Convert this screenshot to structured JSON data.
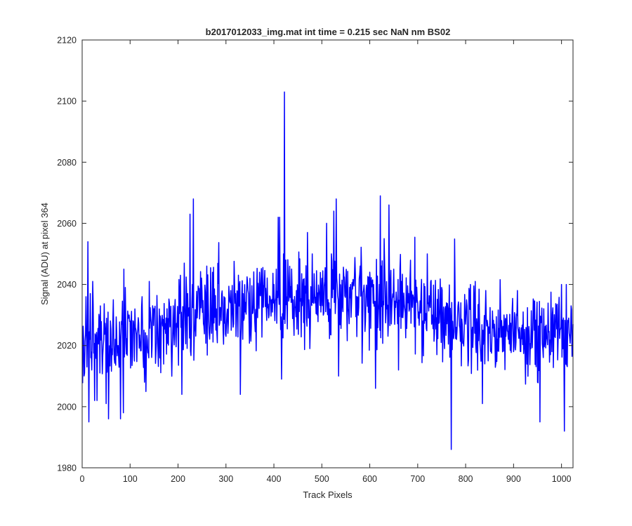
{
  "chart_data": {
    "type": "line",
    "title": "b2017012033_img.mat int time = 0.215 sec  NaN nm BS02",
    "xlabel": "Track Pixels",
    "ylabel": "Signal (ADU) at pixel 364",
    "xlim": [
      0,
      1024
    ],
    "ylim": [
      1980,
      2120
    ],
    "xticks": [
      0,
      100,
      200,
      300,
      400,
      500,
      600,
      700,
      800,
      900,
      1000
    ],
    "yticks": [
      1980,
      2000,
      2020,
      2040,
      2060,
      2080,
      2100,
      2120
    ],
    "grid": false,
    "line_color": "#0000ff",
    "series": [
      {
        "trend": [
          [
            0,
            2020
          ],
          [
            100,
            2022
          ],
          [
            200,
            2028
          ],
          [
            300,
            2031
          ],
          [
            400,
            2033
          ],
          [
            500,
            2035
          ],
          [
            600,
            2036
          ],
          [
            700,
            2033
          ],
          [
            800,
            2027
          ],
          [
            900,
            2024
          ],
          [
            1024,
            2024
          ]
        ],
        "noise_sd": 7,
        "peaks": [
          [
            3,
            2022
          ],
          [
            5,
            2011
          ],
          [
            8,
            2036
          ],
          [
            10,
            2013
          ],
          [
            12,
            2054
          ],
          [
            14,
            1995
          ],
          [
            17,
            2037
          ],
          [
            20,
            2012
          ],
          [
            22,
            2041
          ],
          [
            26,
            2002
          ],
          [
            31,
            2002
          ],
          [
            38,
            2033
          ],
          [
            45,
            2022
          ],
          [
            50,
            2001
          ],
          [
            55,
            1996
          ],
          [
            65,
            2035
          ],
          [
            75,
            2020
          ],
          [
            80,
            1996
          ],
          [
            86,
            1998
          ],
          [
            87,
            2045
          ],
          [
            90,
            2039
          ],
          [
            100,
            2028
          ],
          [
            115,
            2024
          ],
          [
            125,
            2036
          ],
          [
            130,
            2008
          ],
          [
            140,
            2041
          ],
          [
            150,
            2032
          ],
          [
            160,
            2024
          ],
          [
            175,
            2029
          ],
          [
            190,
            2033
          ],
          [
            205,
            2043
          ],
          [
            208,
            2004
          ],
          [
            213,
            2047
          ],
          [
            220,
            2037
          ],
          [
            225,
            2063
          ],
          [
            230,
            2040
          ],
          [
            232,
            2068
          ],
          [
            240,
            2029
          ],
          [
            250,
            2038
          ],
          [
            260,
            2046
          ],
          [
            270,
            2024
          ],
          [
            280,
            2032
          ],
          [
            289,
            2032
          ],
          [
            300,
            2023
          ],
          [
            310,
            2038
          ],
          [
            320,
            2037
          ],
          [
            330,
            2004
          ],
          [
            340,
            2031
          ],
          [
            350,
            2042
          ],
          [
            360,
            2028
          ],
          [
            370,
            2044
          ],
          [
            380,
            2040
          ],
          [
            390,
            2030
          ],
          [
            400,
            2040
          ],
          [
            405,
            2045
          ],
          [
            409,
            2062
          ],
          [
            412,
            2062
          ],
          [
            416,
            2009
          ],
          [
            420,
            2050
          ],
          [
            422,
            2103
          ],
          [
            425,
            2048
          ],
          [
            430,
            2042
          ],
          [
            440,
            2035
          ],
          [
            450,
            2035
          ],
          [
            460,
            2038
          ],
          [
            470,
            2057
          ],
          [
            475,
            2019
          ],
          [
            480,
            2050
          ],
          [
            500,
            2042
          ],
          [
            510,
            2060
          ],
          [
            515,
            2034
          ],
          [
            520,
            2050
          ],
          [
            525,
            2064
          ],
          [
            530,
            2068
          ],
          [
            535,
            2010
          ],
          [
            550,
            2041
          ],
          [
            560,
            2040
          ],
          [
            580,
            2046
          ],
          [
            600,
            2044
          ],
          [
            612,
            2006
          ],
          [
            620,
            2040
          ],
          [
            622,
            2069
          ],
          [
            630,
            2055
          ],
          [
            640,
            2066
          ],
          [
            650,
            2045
          ],
          [
            660,
            2012
          ],
          [
            680,
            2034
          ],
          [
            700,
            2034
          ],
          [
            720,
            2050
          ],
          [
            730,
            2030
          ],
          [
            740,
            2017
          ],
          [
            750,
            2039
          ],
          [
            760,
            2034
          ],
          [
            770,
            1986
          ],
          [
            780,
            2026
          ],
          [
            790,
            2034
          ],
          [
            800,
            2027
          ],
          [
            810,
            2040
          ],
          [
            820,
            2041
          ],
          [
            835,
            2001
          ],
          [
            840,
            2014
          ],
          [
            860,
            2027
          ],
          [
            880,
            2030
          ],
          [
            900,
            2018
          ],
          [
            920,
            2031
          ],
          [
            950,
            2008
          ],
          [
            955,
            1995
          ],
          [
            970,
            2022
          ],
          [
            980,
            2018
          ],
          [
            1000,
            2040
          ],
          [
            1003,
            2019
          ],
          [
            1006,
            1992
          ],
          [
            1010,
            2040
          ],
          [
            1015,
            2029
          ],
          [
            1020,
            2033
          ]
        ]
      }
    ]
  }
}
